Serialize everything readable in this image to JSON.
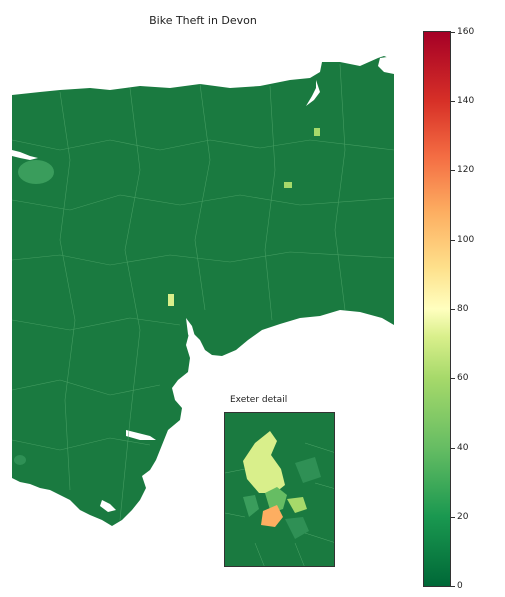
{
  "title": "Bike Theft in Devon",
  "inset_title": "Exeter detail",
  "colorbar": {
    "ticks": [
      "0",
      "20",
      "40",
      "60",
      "80",
      "100",
      "120",
      "140",
      "160"
    ],
    "min": 0,
    "max": 160,
    "colors": [
      "#006837",
      "#1a9850",
      "#66bd63",
      "#a6d96a",
      "#d9ef8b",
      "#ffffbf",
      "#fee08b",
      "#fdae61",
      "#f46d43",
      "#d73027",
      "#a50026"
    ]
  },
  "map": {
    "land_color": "#1a7a40",
    "sea_color": "#ffffff",
    "boundary_color": "#4fa56a"
  }
}
